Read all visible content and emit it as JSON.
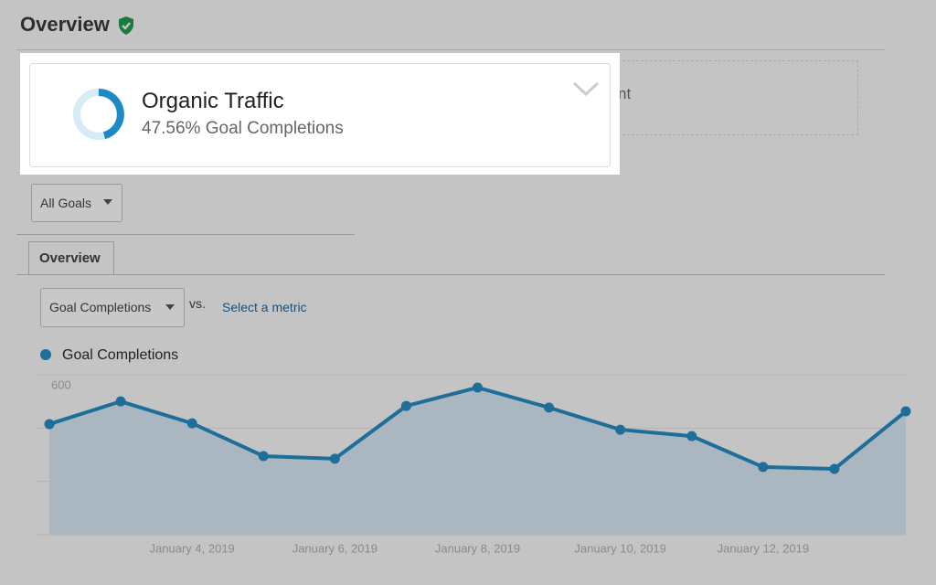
{
  "header": {
    "title": "Overview"
  },
  "card": {
    "title": "Organic Traffic",
    "subtitle": "47.56% Goal Completions",
    "hidden_text": "nt"
  },
  "controls": {
    "goal_filter": "All Goals",
    "tab": "Overview",
    "metric": "Goal Completions",
    "vs": "vs.",
    "second_metric": "Select a metric"
  },
  "chart_data": {
    "type": "line",
    "categories": [
      null,
      null,
      "January 4, 2019",
      null,
      "January 6, 2019",
      null,
      "January 8, 2019",
      null,
      "January 10, 2019",
      null,
      "January 12, 2019",
      null,
      null
    ],
    "series": [
      {
        "name": "Goal Completions",
        "color": "#1d6e99",
        "values": [
          415,
          500,
          418,
          295,
          285,
          483,
          552,
          477,
          394,
          370,
          254,
          247,
          463
        ]
      }
    ],
    "ylim": [
      0,
      600
    ],
    "yticks": [
      200,
      400,
      600
    ],
    "grid": true
  }
}
